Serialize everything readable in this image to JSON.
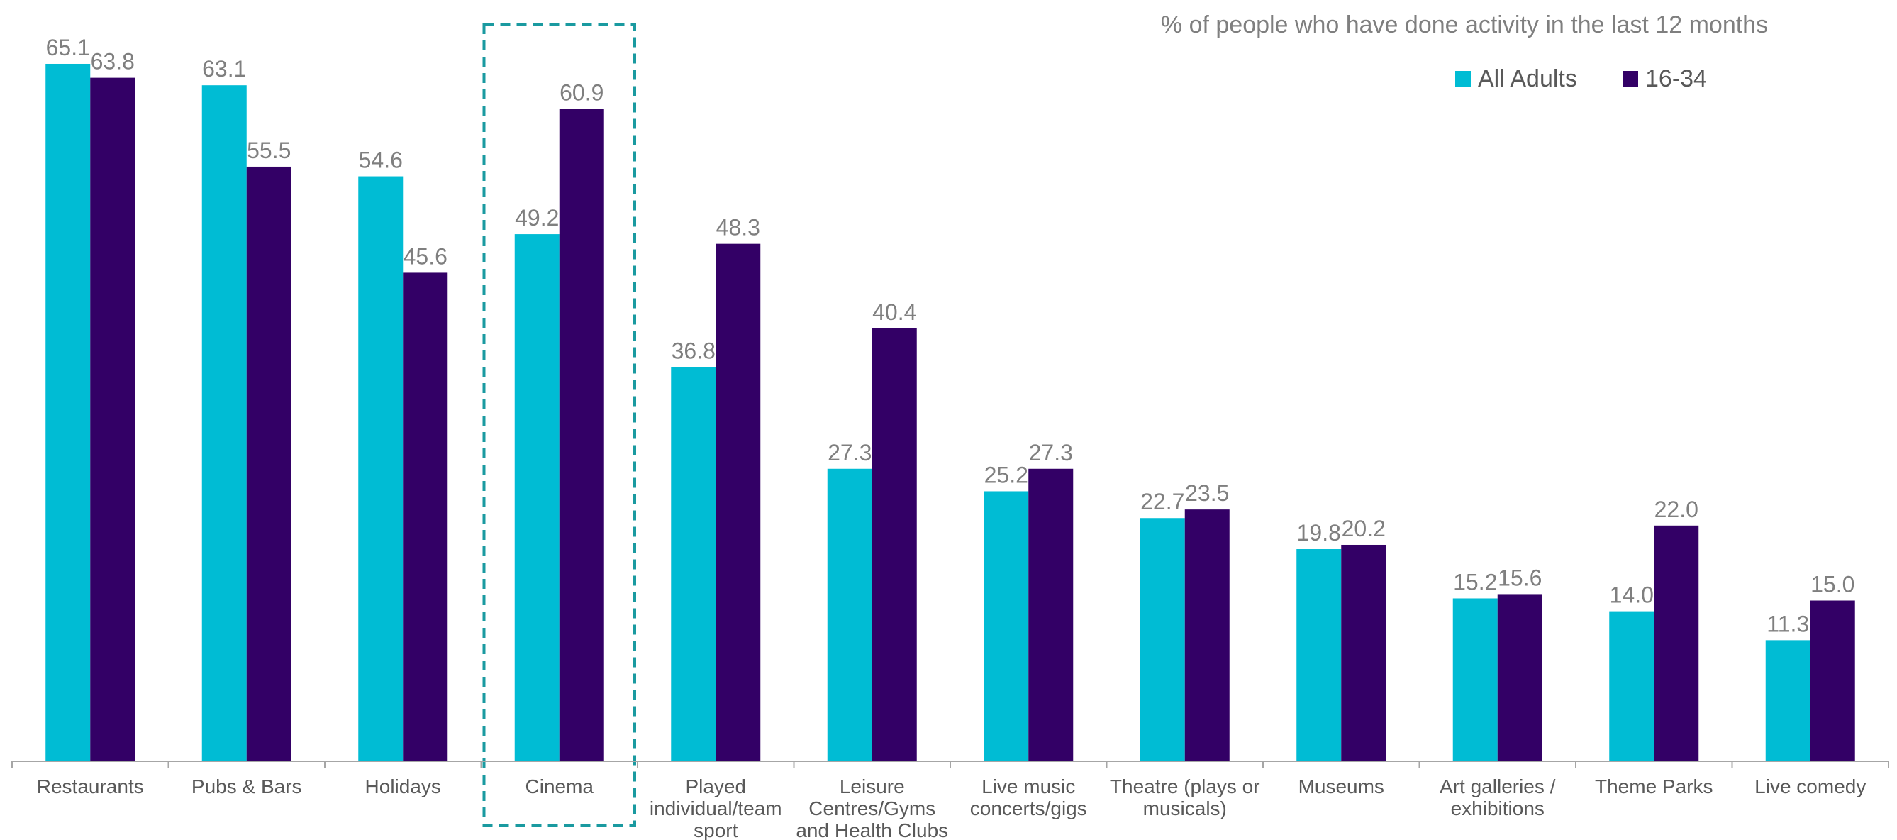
{
  "chart_data": {
    "type": "bar",
    "title": "",
    "subtitle": "% of people who have done activity in the last 12 months",
    "xlabel": "",
    "ylabel": "",
    "ylim": [
      0,
      70
    ],
    "grid": false,
    "legend_position": "top-right",
    "highlighted_category": "Cinema",
    "categories": [
      [
        "Restaurants"
      ],
      [
        "Pubs & Bars"
      ],
      [
        "Holidays"
      ],
      [
        "Cinema"
      ],
      [
        "Played",
        "individual/team",
        "sport"
      ],
      [
        "Leisure",
        "Centres/Gyms",
        "and Health Clubs"
      ],
      [
        "Live music",
        "concerts/gigs"
      ],
      [
        "Theatre (plays or",
        "musicals)"
      ],
      [
        "Museums"
      ],
      [
        "Art galleries /",
        "exhibitions"
      ],
      [
        "Theme Parks"
      ],
      [
        "Live comedy"
      ]
    ],
    "series": [
      {
        "name": "All Adults",
        "color": "#00BCD4",
        "values": [
          65.1,
          63.1,
          54.6,
          49.2,
          36.8,
          27.3,
          25.2,
          22.7,
          19.8,
          15.2,
          14.0,
          11.3
        ]
      },
      {
        "name": "16-34",
        "color": "#330066",
        "values": [
          63.8,
          55.5,
          45.6,
          60.9,
          48.3,
          40.4,
          27.3,
          23.5,
          20.2,
          15.6,
          22.0,
          15.0
        ]
      }
    ],
    "colors": {
      "axis": "#a6a6a6",
      "highlight_border": "#1a9aa0",
      "value_label": "#7f7f7f",
      "category_label": "#595959"
    }
  }
}
